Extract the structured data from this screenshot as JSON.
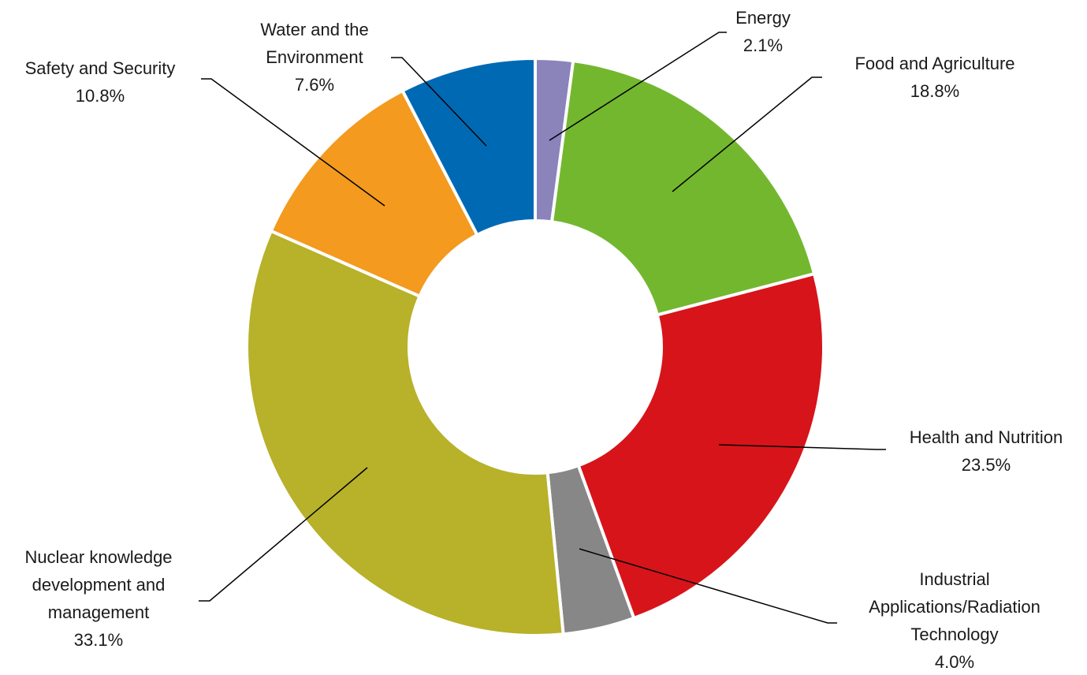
{
  "chart_data": {
    "type": "pie",
    "variant": "donut",
    "categories": [
      "Energy",
      "Food and Agriculture",
      "Health and Nutrition",
      "Industrial Applications/Radiation Technology",
      "Nuclear knowledge development and management",
      "Safety and Security",
      "Water and the Environment"
    ],
    "values": [
      2.1,
      18.8,
      23.5,
      4.0,
      33.1,
      10.8,
      7.6
    ],
    "value_labels": [
      "2.1%",
      "18.8%",
      "23.5%",
      "4.0%",
      "33.1%",
      "10.8%",
      "7.6%"
    ],
    "colors": [
      "#8a84bb",
      "#73b72f",
      "#d7141a",
      "#878787",
      "#b8b12a",
      "#f39a1f",
      "#0069b4"
    ],
    "legend": "none",
    "label_lines": [
      [
        "Energy",
        "2.1%"
      ],
      [
        "Food and Agriculture",
        "18.8%"
      ],
      [
        "Health and Nutrition",
        "23.5%"
      ],
      [
        "Industrial",
        "Applications/Radiation",
        "Technology",
        "4.0%"
      ],
      [
        "Nuclear knowledge",
        "development and",
        "management",
        "33.1%"
      ],
      [
        "Safety and Security",
        "10.8%"
      ],
      [
        "Water and the",
        "Environment",
        "7.6%"
      ]
    ]
  }
}
